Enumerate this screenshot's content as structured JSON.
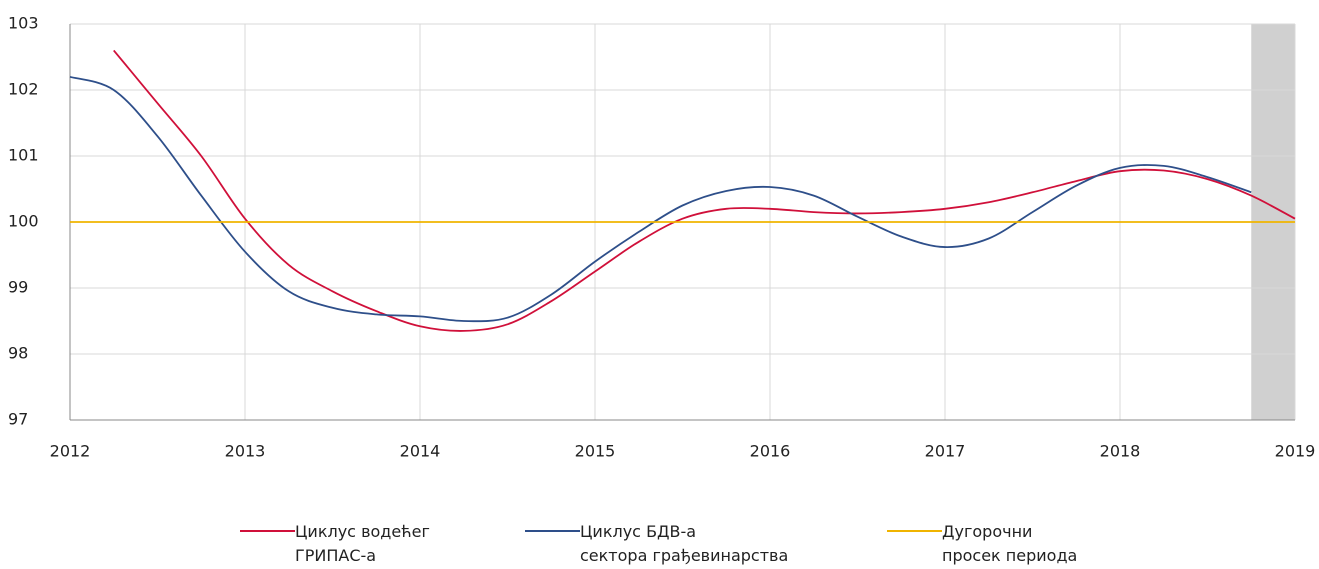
{
  "chart_data": {
    "type": "line",
    "xlim": [
      2012,
      2019
    ],
    "xticks": [
      2012,
      2013,
      2014,
      2015,
      2016,
      2017,
      2018,
      2019
    ],
    "ylim": [
      97,
      103
    ],
    "yticks": [
      97,
      98,
      99,
      100,
      101,
      102,
      103
    ],
    "grid": true,
    "shade": [
      2018.75,
      2019
    ],
    "shade_color": "#d0d0d0",
    "series": [
      {
        "name": "Циклус водећег\nГРИПАС-а",
        "color": "#d0103a",
        "x": [
          2012.25,
          2012.5,
          2012.75,
          2013,
          2013.25,
          2013.5,
          2013.75,
          2014,
          2014.25,
          2014.5,
          2014.75,
          2015,
          2015.25,
          2015.5,
          2015.75,
          2016,
          2016.25,
          2016.5,
          2016.75,
          2017,
          2017.25,
          2017.5,
          2017.75,
          2018,
          2018.25,
          2018.5,
          2018.75,
          2019
        ],
        "values": [
          102.6,
          101.8,
          101.0,
          100.05,
          99.35,
          98.95,
          98.65,
          98.42,
          98.35,
          98.45,
          98.8,
          99.25,
          99.7,
          100.05,
          100.2,
          100.2,
          100.15,
          100.13,
          100.15,
          100.2,
          100.3,
          100.45,
          100.62,
          100.77,
          100.78,
          100.65,
          100.4,
          100.05
        ]
      },
      {
        "name": "Циклус БДВ-а\nсектора грађевинарства",
        "color": "#2e4f8a",
        "x": [
          2012,
          2012.25,
          2012.5,
          2012.75,
          2013,
          2013.25,
          2013.5,
          2013.75,
          2014,
          2014.25,
          2014.5,
          2014.75,
          2015,
          2015.25,
          2015.5,
          2015.75,
          2016,
          2016.25,
          2016.5,
          2016.75,
          2017,
          2017.25,
          2017.5,
          2017.75,
          2018,
          2018.25,
          2018.5,
          2018.75
        ],
        "values": [
          102.2,
          102.0,
          101.3,
          100.4,
          99.55,
          98.95,
          98.7,
          98.6,
          98.57,
          98.5,
          98.55,
          98.9,
          99.4,
          99.85,
          100.25,
          100.47,
          100.53,
          100.4,
          100.08,
          99.78,
          99.62,
          99.75,
          100.15,
          100.55,
          100.82,
          100.85,
          100.68,
          100.45
        ]
      },
      {
        "name": "Дугорочни\nпросек периода",
        "color": "#f0b400",
        "x": [
          2012,
          2019
        ],
        "values": [
          100,
          100
        ]
      }
    ]
  }
}
